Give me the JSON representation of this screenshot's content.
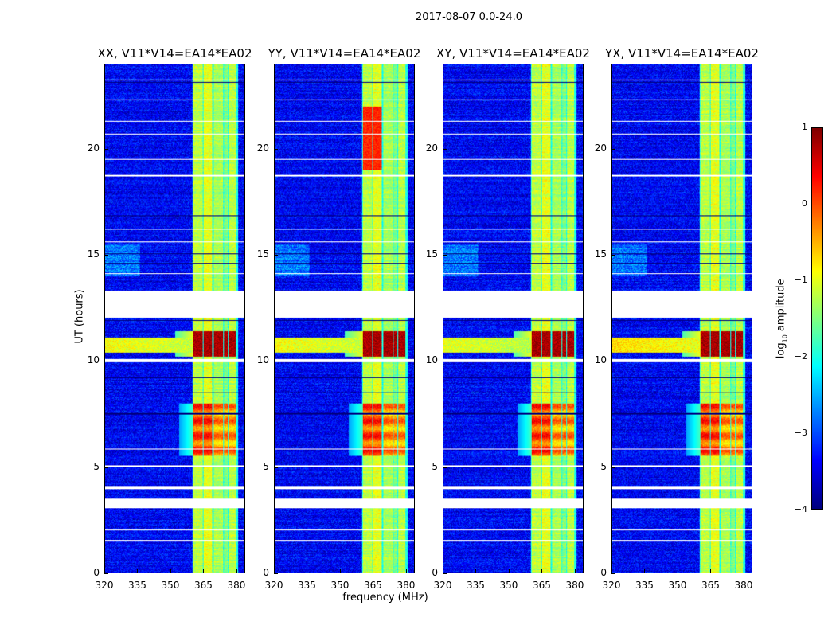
{
  "suptitle": "2017-08-07 0.0-24.0",
  "chart_data": {
    "type": "heatmap",
    "title": "2017-08-07 0.0-24.0",
    "xlabel": "frequency (MHz)",
    "ylabel": "UT (hours)",
    "xlim": [
      320,
      384
    ],
    "ylim": [
      0,
      24
    ],
    "xticks": [
      320,
      335,
      350,
      365,
      380
    ],
    "yticks": [
      0,
      5,
      10,
      15,
      20
    ],
    "colormap": "jet",
    "colorbar": {
      "label_main": "log",
      "label_sub": "10",
      "label_rest": " amplitude",
      "range": [
        -4,
        1
      ],
      "ticks": [
        1,
        0,
        -1,
        -2,
        -3,
        -4
      ],
      "tick_labels": [
        "1",
        "0",
        "−1",
        "−2",
        "−3",
        "−4"
      ]
    },
    "panels": [
      {
        "title": "XX, V11*V14=EA14*EA02",
        "rfi_strength": 1.0,
        "extra_hot": false
      },
      {
        "title": "YY, V11*V14=EA14*EA02",
        "rfi_strength": 1.0,
        "extra_hot": true
      },
      {
        "title": "XY, V11*V14=EA14*EA02",
        "rfi_strength": 1.1,
        "extra_hot": false
      },
      {
        "title": "YX, V11*V14=EA14*EA02",
        "rfi_strength": 0.8,
        "extra_hot": false
      }
    ],
    "background_level": -3.4,
    "bands_mhz": [
      [
        360.5,
        364.8,
        -1.2
      ],
      [
        365.3,
        369.2,
        -1.0
      ],
      [
        369.8,
        374.2,
        -1.3
      ],
      [
        374.7,
        376.3,
        -1.5
      ],
      [
        376.8,
        380.0,
        -1.2
      ]
    ],
    "hot_intervals_hours": [
      [
        10.2,
        11.4,
        0.7
      ],
      [
        5.5,
        8.0,
        0.0
      ]
    ],
    "broadband_rfi_hours": [
      10.4,
      11.1
    ],
    "flagged_hours": [
      [
        12.05,
        13.3
      ],
      [
        3.05,
        3.5
      ],
      [
        9.95,
        10.1
      ],
      [
        1.45,
        1.52
      ],
      [
        2.0,
        2.05
      ],
      [
        3.95,
        4.08
      ],
      [
        5.0,
        5.05
      ],
      [
        5.8,
        5.85
      ],
      [
        14.1,
        14.15
      ],
      [
        15.6,
        15.65
      ],
      [
        16.2,
        16.25
      ],
      [
        18.7,
        18.78
      ],
      [
        19.5,
        19.55
      ],
      [
        20.7,
        20.75
      ],
      [
        21.3,
        21.35
      ],
      [
        22.3,
        22.35
      ],
      [
        23.25,
        23.3
      ]
    ],
    "dark_rows_hours": [
      23.15,
      16.85,
      9.2,
      7.5,
      8.5,
      14.6,
      15.05,
      11.9
    ]
  }
}
